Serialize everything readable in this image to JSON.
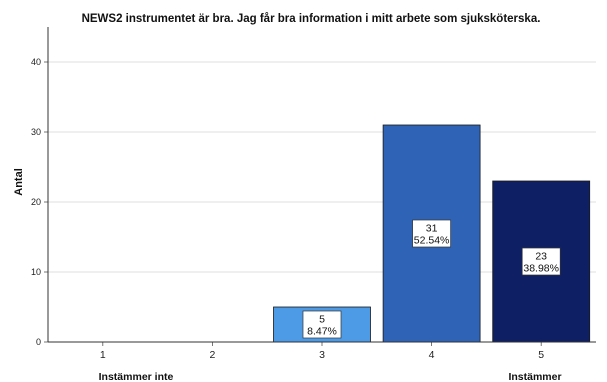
{
  "chart_data": {
    "type": "bar",
    "title": "NEWS2 instrumentet är bra. Jag får bra information i mitt arbete som sjuksköterska.",
    "xlabel": "",
    "ylabel": "Antal",
    "ylim": [
      0,
      45
    ],
    "yticks": [
      0,
      10,
      20,
      30,
      40
    ],
    "grid": true,
    "categories": [
      "1",
      "2",
      "3",
      "4",
      "5"
    ],
    "values": [
      0,
      0,
      5,
      31,
      23
    ],
    "percent_labels": [
      "",
      "",
      "8.47%",
      "52.54%",
      "38.98%"
    ],
    "bar_colors": [
      "#4d9ae6",
      "#4d9ae6",
      "#4d9ae6",
      "#2f63b5",
      "#0f1f63"
    ],
    "anchor_labels": {
      "left": "Instämmer inte",
      "right": "Instämmer"
    }
  }
}
